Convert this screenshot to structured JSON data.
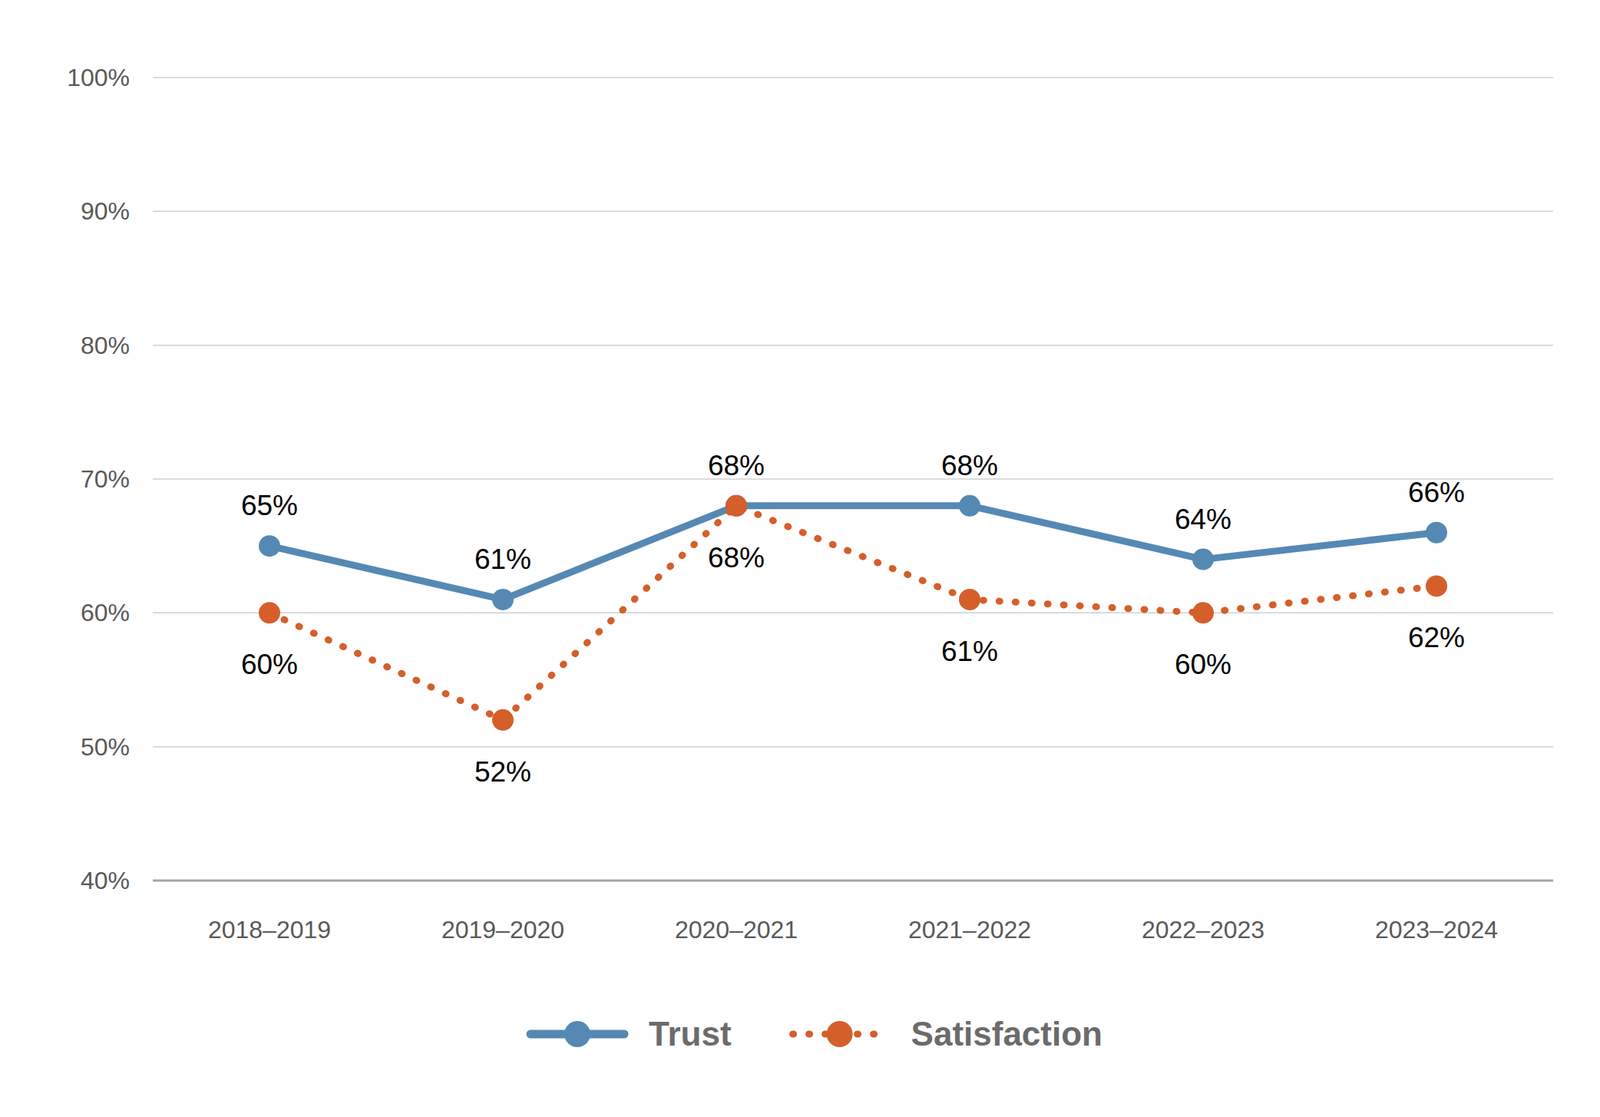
{
  "chart_data": {
    "type": "line",
    "categories": [
      "2018–2019",
      "2019–2020",
      "2020–2021",
      "2021–2022",
      "2022–2023",
      "2023–2024"
    ],
    "series": [
      {
        "name": "Trust",
        "color": "#5589b3",
        "marker": "circle",
        "line_style": "solid",
        "values": [
          65,
          61,
          68,
          68,
          64,
          66
        ],
        "value_labels": [
          "65%",
          "61%",
          "68%",
          "68%",
          "64%",
          "66%"
        ]
      },
      {
        "name": "Satisfaction",
        "color": "#d45f2b",
        "marker": "circle",
        "line_style": "dotted",
        "values": [
          60,
          52,
          68,
          61,
          60,
          62
        ],
        "value_labels": [
          "60%",
          "52%",
          "68%",
          "61%",
          "60%",
          "62%"
        ]
      }
    ],
    "ylim": [
      40,
      100
    ],
    "yticks": [
      {
        "value": 40,
        "label": "40%"
      },
      {
        "value": 50,
        "label": "50%"
      },
      {
        "value": 60,
        "label": "60%"
      },
      {
        "value": 70,
        "label": "70%"
      },
      {
        "value": 80,
        "label": "80%"
      },
      {
        "value": 90,
        "label": "90%"
      },
      {
        "value": 100,
        "label": "100%"
      }
    ],
    "grid": true,
    "data_labels": true,
    "legend": "bottom"
  }
}
